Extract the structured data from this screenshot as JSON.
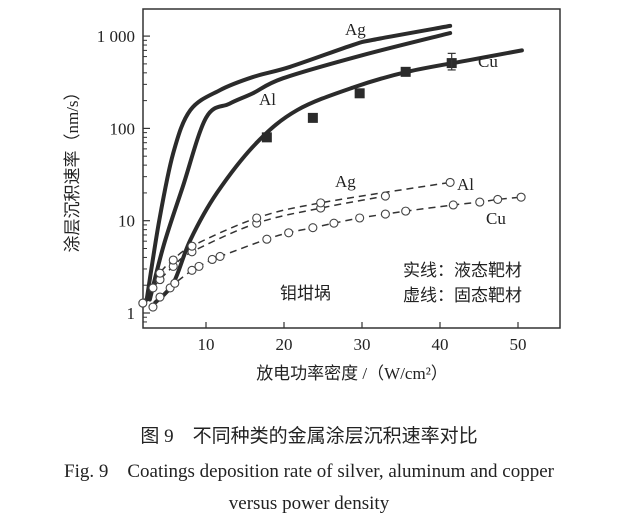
{
  "chart_data": {
    "type": "line",
    "xlabel": "放电功率密度 /（W/cm²）",
    "ylabel": "涂层沉积速率（nm/s）",
    "xlim": [
      1.9,
      55.5
    ],
    "ylim": [
      0.74,
      1900
    ],
    "yscale": "log",
    "grid": false,
    "xticks": [
      10,
      20,
      30,
      40,
      50
    ],
    "xtick_labels": [
      "10",
      "20",
      "30",
      "40",
      "50"
    ],
    "yticks": [
      1,
      10,
      100,
      1000
    ],
    "ytick_labels": [
      "1",
      "10",
      "100",
      "1 000"
    ],
    "annotations": {
      "crucible": "钼坩埚",
      "legend_solid": "实线：液态靶材",
      "legend_dashed": "虚线：固态靶材"
    },
    "series": [
      {
        "name": "Ag",
        "style": "solid",
        "marker": "none",
        "x": [
          2.4,
          4.0,
          5.8,
          8.0,
          11.8,
          16,
          20.8,
          28.8,
          31.4,
          41.3
        ],
        "y": [
          1.4,
          10,
          54,
          158,
          260,
          360,
          465,
          800,
          910,
          1290
        ]
      },
      {
        "name": "Al",
        "style": "solid",
        "marker": "none",
        "x": [
          2.8,
          4.6,
          7.0,
          10.0,
          13,
          16.0,
          19.9,
          30,
          41.3
        ],
        "y": [
          1.4,
          5.5,
          23,
          130,
          185,
          240,
          350,
          620,
          1080
        ]
      },
      {
        "name": "Cu",
        "style": "solid",
        "marker": "square",
        "x": [
          3.5,
          5.8,
          8.0,
          11.4,
          16.5,
          21.7,
          29,
          35.8,
          43.8,
          50.5
        ],
        "y": [
          1.3,
          2.1,
          6.2,
          20,
          70,
          158,
          280,
          410,
          550,
          700
        ],
        "points_x": [
          17.8,
          23.7,
          29.7,
          35.6,
          41.5
        ],
        "points_y": [
          80,
          130,
          240,
          410,
          510
        ],
        "error_last": [
          430,
          650
        ]
      },
      {
        "name": "Ag",
        "style": "dashed",
        "marker": "open-circle",
        "x": [
          3.2,
          4.1,
          5.8,
          8.2,
          16.5,
          24.7,
          33.0
        ],
        "y": [
          1.87,
          2.3,
          3.2,
          4.6,
          9.4,
          13.7,
          18.5
        ]
      },
      {
        "name": "Al",
        "style": "dashed",
        "marker": "open-circle",
        "x": [
          1.9,
          4.1,
          5.8,
          8.2,
          16.5,
          24.7,
          41.3
        ],
        "y": [
          1.28,
          2.7,
          3.75,
          5.3,
          10.7,
          15.6,
          26
        ]
      },
      {
        "name": "Cu",
        "style": "dashed",
        "marker": "open-circle",
        "x": [
          3.2,
          4.1,
          5.4,
          6.0,
          8.2,
          9.1,
          10.8,
          11.8,
          17.8,
          20.6,
          23.7,
          26.4,
          29.7,
          33.0,
          35.6,
          41.7,
          45.1,
          47.4,
          50.4
        ],
        "y": [
          1.16,
          1.49,
          1.87,
          2.1,
          2.9,
          3.2,
          3.8,
          4.1,
          6.3,
          7.4,
          8.4,
          9.4,
          10.7,
          11.8,
          12.7,
          14.8,
          15.9,
          17.0,
          18.0
        ]
      }
    ]
  },
  "caption": {
    "zh": "图 9　不同种类的金属涂层沉积速率对比",
    "en_line1": "Fig. 9　Coatings deposition rate of silver, aluminum and copper",
    "en_line2": "versus power density"
  }
}
